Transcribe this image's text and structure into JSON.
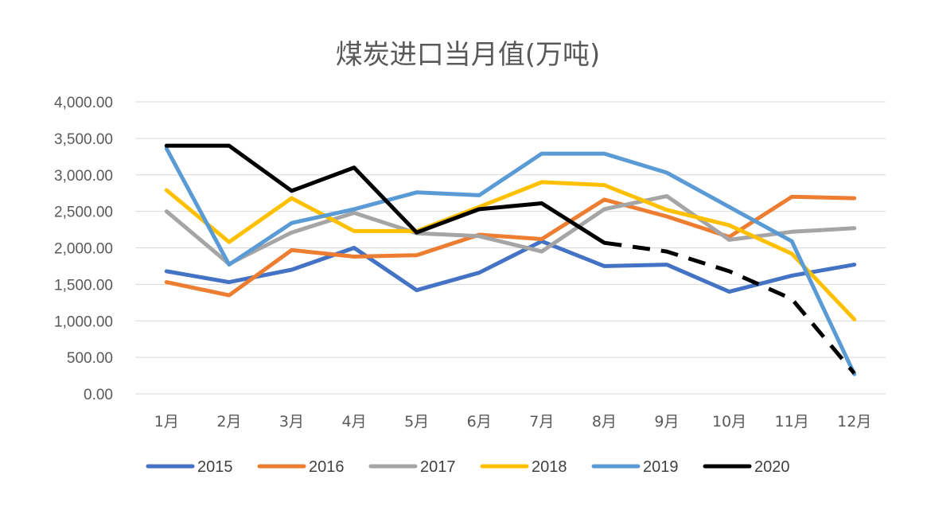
{
  "chart_data": {
    "type": "line",
    "title": "煤炭进口当月值(万吨)",
    "categories": [
      "1月",
      "2月",
      "3月",
      "4月",
      "5月",
      "6月",
      "7月",
      "8月",
      "9月",
      "10月",
      "11月",
      "12月"
    ],
    "ylim": [
      0,
      4000
    ],
    "yticks": [
      "0.00",
      "500.00",
      "1,000.00",
      "1,500.00",
      "2,000.00",
      "2,500.00",
      "3,000.00",
      "3,500.00",
      "4,000.00"
    ],
    "grid": true,
    "legend_position": "bottom",
    "series": [
      {
        "name": "2015",
        "color": "#4472c4",
        "values": [
          1680,
          1530,
          1700,
          2000,
          1420,
          1660,
          2090,
          1750,
          1770,
          1400,
          1620,
          1770
        ]
      },
      {
        "name": "2016",
        "color": "#ed7d31",
        "values": [
          1530,
          1350,
          1970,
          1880,
          1900,
          2180,
          2120,
          2660,
          2430,
          2150,
          2700,
          2680
        ]
      },
      {
        "name": "2017",
        "color": "#a5a5a5",
        "values": [
          2500,
          1780,
          2210,
          2480,
          2200,
          2160,
          1950,
          2530,
          2710,
          2110,
          2220,
          2270
        ]
      },
      {
        "name": "2018",
        "color": "#ffc000",
        "values": [
          2790,
          2080,
          2680,
          2230,
          2230,
          2560,
          2900,
          2860,
          2520,
          2310,
          1920,
          1020
        ]
      },
      {
        "name": "2019",
        "color": "#5b9bd5",
        "values": [
          3360,
          1770,
          2340,
          2530,
          2760,
          2720,
          3290,
          3290,
          3030,
          2560,
          2090,
          270
        ]
      },
      {
        "name": "2020",
        "color": "#000000",
        "values": [
          3400,
          3400,
          2780,
          3100,
          2210,
          2530,
          2610,
          2070,
          1950,
          1680,
          1300,
          280
        ],
        "dashed_from_index": 7
      }
    ]
  }
}
